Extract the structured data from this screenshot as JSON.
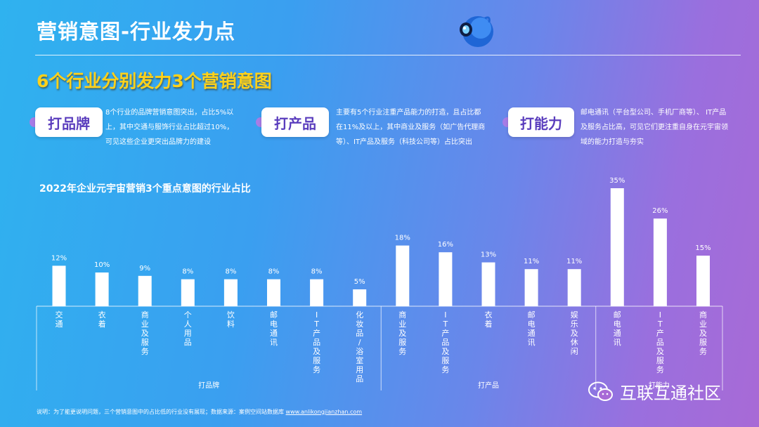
{
  "slide": {
    "title": "营销意图-行业发力点",
    "subtitle": "6个行业分别发力3个营销意图"
  },
  "intents": [
    {
      "label": "打品牌",
      "desc": [
        "8个行业的品牌营销意图突出，占比5%以",
        "上，其中交通与服饰行业占比超过10%，",
        "可见这些企业更突出品牌力的建设"
      ]
    },
    {
      "label": "打产品",
      "desc": [
        "主要有5个行业注重产品能力的打造，且占比都",
        "在11%及以上，其中商业及服务（如广告代理商",
        "等）、IT产品及服务（科技公司等）占比突出"
      ]
    },
    {
      "label": "打能力",
      "desc": [
        "邮电通讯（平台型公司、手机厂商等）、 IT产品",
        "及服务占比高，可见它们更注重自身在元宇宙领",
        "域的能力打造与夯实"
      ]
    }
  ],
  "chart_data": {
    "type": "bar",
    "title": "2022年企业元宇宙营销3个重点意图的行业占比",
    "categories": [
      "交通",
      "衣着",
      "商业及服务",
      "个人用品",
      "饮料",
      "邮电通讯",
      "IT产品及服务",
      "化妆品/浴室用品",
      "商业及服务",
      "IT产品及服务",
      "衣着",
      "邮电通讯",
      "娱乐及休闲",
      "邮电通讯",
      "IT产品及服务",
      "商业及服务"
    ],
    "values": [
      12,
      10,
      9,
      8,
      8,
      8,
      8,
      5,
      18,
      16,
      13,
      11,
      11,
      35,
      26,
      15
    ],
    "value_labels": [
      "12%",
      "10%",
      "9%",
      "8%",
      "8%",
      "8%",
      "8%",
      "5%",
      "18%",
      "16%",
      "13%",
      "11%",
      "11%",
      "35%",
      "26%",
      "15%"
    ],
    "groups": [
      {
        "name": "打品牌",
        "start": 0,
        "count": 8
      },
      {
        "name": "打产品",
        "start": 8,
        "count": 5
      },
      {
        "name": "打能力",
        "start": 13,
        "count": 3
      }
    ],
    "unit": "%",
    "ylim": [
      0,
      35
    ]
  },
  "footer": {
    "note": "说明：为了能更说明问题，三个营销意图中的占比低的行业没有展现；数据来源：案例空间站数据库 ",
    "url": "www.anlikongjianzhan.com"
  },
  "watermark": {
    "text": "互联互通社区",
    "icon": "wechat-icon"
  }
}
